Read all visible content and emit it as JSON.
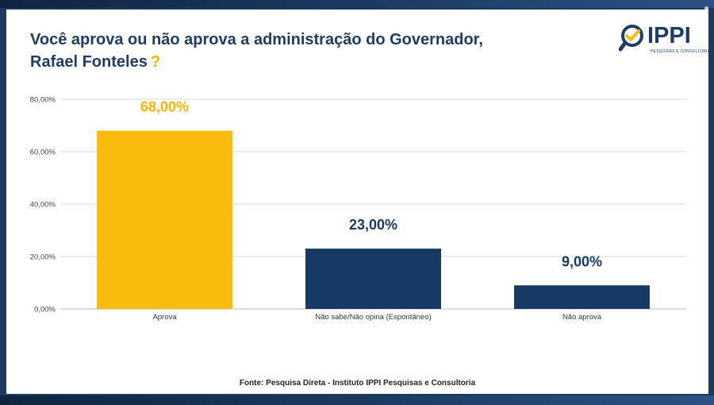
{
  "title_line1": "Você aprova ou não aprova a administração do Governador,",
  "title_line2": "Rafael Fonteles",
  "title_mark": "?",
  "logo": {
    "text": "IPPI",
    "subtitle": "PESQUISAS E CONSULTORIA"
  },
  "source": "Fonte: Pesquisa Direta - Instituto IPPI Pesquisas e Consultoria",
  "colors": {
    "accent": "#f9bc0c",
    "primary": "#163a63",
    "title": "#1f3c66"
  },
  "chart_data": {
    "type": "bar",
    "categories": [
      "Aprova",
      "Não sabe/Não opina (Espontâneo)",
      "Não aprova"
    ],
    "values": [
      68,
      23,
      9
    ],
    "value_labels": [
      "68,00%",
      "23,00%",
      "9,00%"
    ],
    "bar_colors": [
      "#f9bc0c",
      "#163a63",
      "#163a63"
    ],
    "label_colors": [
      "#f2b705",
      "#163a63",
      "#163a63"
    ],
    "ylim": [
      0,
      80
    ],
    "yticks": [
      0,
      20,
      40,
      60,
      80
    ],
    "ytick_labels": [
      "0,00%",
      "20,00%",
      "40,00%",
      "60,00%",
      "80,00%"
    ],
    "grid": true,
    "legend": "none",
    "xlabel": "",
    "ylabel": ""
  }
}
